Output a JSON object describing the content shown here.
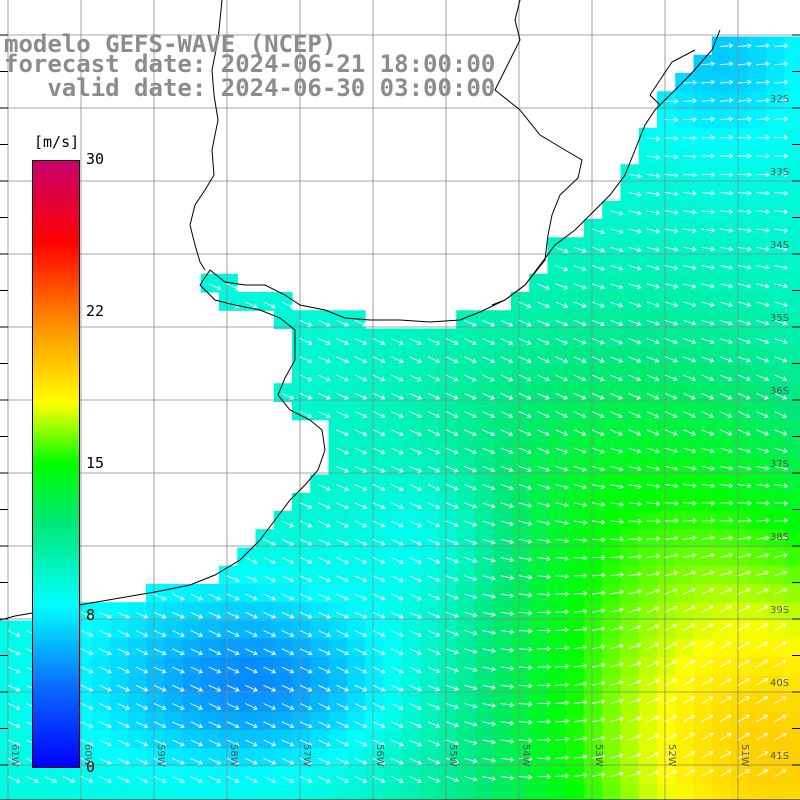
{
  "title": {
    "line1": "modelo GEFS-WAVE (NCEP)",
    "line2": "forecast date: 2024-06-21 18:00:00",
    "line3": "   valid date: 2024-06-30 03:00:00"
  },
  "colorbar": {
    "unit": "[m/s]",
    "ticks": [
      "30",
      "22",
      "15",
      "8",
      "0"
    ],
    "tick_values": [
      30,
      22,
      15,
      8,
      0
    ],
    "range": [
      0,
      30
    ],
    "stops": [
      {
        "v": 0,
        "color": "#0000ff"
      },
      {
        "v": 4,
        "color": "#0a6cff"
      },
      {
        "v": 8,
        "color": "#00ffff"
      },
      {
        "v": 12,
        "color": "#00e87a"
      },
      {
        "v": 15,
        "color": "#00ff00"
      },
      {
        "v": 18,
        "color": "#ffff00"
      },
      {
        "v": 22,
        "color": "#ff8c00"
      },
      {
        "v": 26,
        "color": "#ff0000"
      },
      {
        "v": 30,
        "color": "#c8006e"
      }
    ]
  },
  "map": {
    "lat_labels": [
      "32S",
      "33S",
      "34S",
      "35S",
      "36S",
      "37S",
      "38S",
      "39S",
      "40S",
      "41S"
    ],
    "lon_labels": [
      "61W",
      "60W",
      "59W",
      "58W",
      "57W",
      "56W",
      "55W",
      "54W",
      "53W",
      "52W",
      "51W"
    ],
    "land_color": "#ffffff",
    "grid_color": "#888888",
    "coast_color": "#000000",
    "arrow_color": "#ffffff"
  }
}
